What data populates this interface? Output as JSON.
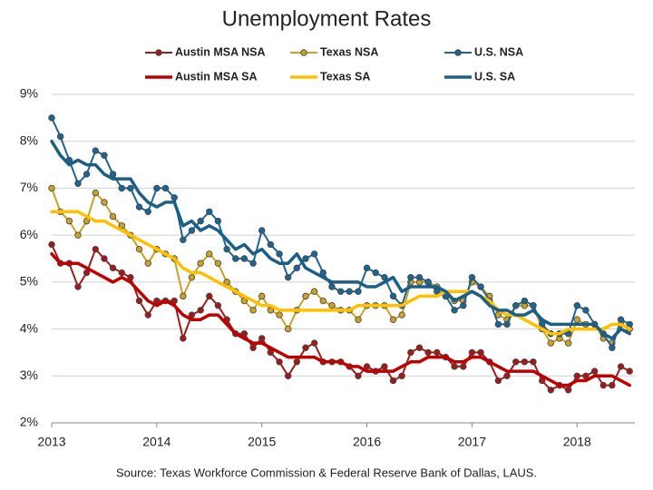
{
  "chart_data": {
    "type": "line",
    "title": "Unemployment Rates",
    "source": "Source:  Texas Workforce Commission & Federal Reserve Bank of Dallas, LAUS.",
    "x": [
      2013,
      2013.083,
      2013.167,
      2013.25,
      2013.333,
      2013.417,
      2013.5,
      2013.583,
      2013.667,
      2013.75,
      2013.833,
      2013.917,
      2014,
      2014.083,
      2014.167,
      2014.25,
      2014.333,
      2014.417,
      2014.5,
      2014.583,
      2014.667,
      2014.75,
      2014.833,
      2014.917,
      2015,
      2015.083,
      2015.167,
      2015.25,
      2015.333,
      2015.417,
      2015.5,
      2015.583,
      2015.667,
      2015.75,
      2015.833,
      2015.917,
      2016,
      2016.083,
      2016.167,
      2016.25,
      2016.333,
      2016.417,
      2016.5,
      2016.583,
      2016.667,
      2016.75,
      2016.833,
      2016.917,
      2017,
      2017.083,
      2017.167,
      2017.25,
      2017.333,
      2017.417,
      2017.5,
      2017.583,
      2017.667,
      2017.75,
      2017.833,
      2017.917,
      2018,
      2018.083,
      2018.167,
      2018.25,
      2018.333,
      2018.417,
      2018.5
    ],
    "xlim": [
      2013,
      2018.55
    ],
    "xticks": [
      2013,
      2014,
      2015,
      2016,
      2017,
      2018
    ],
    "ylim": [
      2,
      9
    ],
    "yticks": [
      {
        "value": 2,
        "label": "2%"
      },
      {
        "value": 3,
        "label": "3%"
      },
      {
        "value": 4,
        "label": "4%"
      },
      {
        "value": 5,
        "label": "5%"
      },
      {
        "value": 6,
        "label": "6%"
      },
      {
        "value": 7,
        "label": "7%"
      },
      {
        "value": 8,
        "label": "8%"
      },
      {
        "value": 9,
        "label": "9%"
      }
    ],
    "grid": true,
    "series": [
      {
        "name": "Austin MSA NSA",
        "color": "#9e1b1b",
        "marker": true,
        "values": [
          5.8,
          5.4,
          5.4,
          4.9,
          5.2,
          5.7,
          5.5,
          5.3,
          5.2,
          5.1,
          4.6,
          4.3,
          4.6,
          4.6,
          4.6,
          3.8,
          4.3,
          4.4,
          4.7,
          4.5,
          4.2,
          3.9,
          3.9,
          3.6,
          3.8,
          3.5,
          3.3,
          3.0,
          3.3,
          3.6,
          3.7,
          3.3,
          3.3,
          3.3,
          3.2,
          3.0,
          3.2,
          3.1,
          3.2,
          2.9,
          3.0,
          3.5,
          3.6,
          3.5,
          3.5,
          3.4,
          3.2,
          3.2,
          3.5,
          3.5,
          3.3,
          2.9,
          3.0,
          3.3,
          3.3,
          3.3,
          2.9,
          2.7,
          2.8,
          2.7,
          3.0,
          3.0,
          3.1,
          2.8,
          2.8,
          3.2,
          3.1
        ]
      },
      {
        "name": "Texas NSA",
        "color": "#c9a227",
        "marker": true,
        "values": [
          7.0,
          6.5,
          6.3,
          6.0,
          6.3,
          6.9,
          6.7,
          6.4,
          6.2,
          6.0,
          5.7,
          5.4,
          5.7,
          5.6,
          5.5,
          4.7,
          5.1,
          5.4,
          5.6,
          5.4,
          5.0,
          4.8,
          4.6,
          4.4,
          4.7,
          4.4,
          4.3,
          4.0,
          4.4,
          4.7,
          4.8,
          4.6,
          4.5,
          4.4,
          4.4,
          4.2,
          4.5,
          4.5,
          4.5,
          4.2,
          4.3,
          5.0,
          5.0,
          5.0,
          4.9,
          4.7,
          4.6,
          4.6,
          5.0,
          4.9,
          4.7,
          4.3,
          4.2,
          4.5,
          4.5,
          4.5,
          4.0,
          3.7,
          3.8,
          3.7,
          4.2,
          4.1,
          4.1,
          3.8,
          3.7,
          4.1,
          4.0
        ]
      },
      {
        "name": "U.S. NSA",
        "color": "#1d6592",
        "marker": true,
        "values": [
          8.5,
          8.1,
          7.6,
          7.1,
          7.3,
          7.8,
          7.7,
          7.3,
          7.0,
          7.0,
          6.6,
          6.5,
          7.0,
          7.0,
          6.8,
          5.9,
          6.1,
          6.3,
          6.5,
          6.3,
          5.7,
          5.5,
          5.5,
          5.4,
          6.1,
          5.8,
          5.6,
          5.1,
          5.3,
          5.5,
          5.6,
          5.2,
          4.9,
          4.8,
          4.8,
          4.8,
          5.3,
          5.2,
          5.1,
          4.7,
          4.5,
          5.1,
          5.1,
          5.0,
          4.8,
          4.7,
          4.4,
          4.5,
          5.1,
          4.9,
          4.6,
          4.1,
          4.1,
          4.5,
          4.6,
          4.5,
          4.1,
          3.9,
          3.9,
          3.9,
          4.5,
          4.4,
          4.1,
          3.9,
          3.6,
          4.2,
          4.1
        ]
      },
      {
        "name": "Austin MSA SA",
        "color": "#c00000",
        "marker": false,
        "values": [
          5.6,
          5.4,
          5.4,
          5.4,
          5.3,
          5.2,
          5.1,
          5.0,
          5.1,
          5.0,
          4.8,
          4.6,
          4.5,
          4.6,
          4.5,
          4.3,
          4.2,
          4.2,
          4.3,
          4.3,
          4.1,
          3.9,
          3.8,
          3.7,
          3.7,
          3.6,
          3.5,
          3.4,
          3.4,
          3.4,
          3.4,
          3.3,
          3.3,
          3.3,
          3.2,
          3.2,
          3.1,
          3.1,
          3.1,
          3.1,
          3.2,
          3.3,
          3.3,
          3.4,
          3.4,
          3.4,
          3.3,
          3.3,
          3.4,
          3.4,
          3.3,
          3.2,
          3.1,
          3.1,
          3.1,
          3.1,
          3.0,
          2.9,
          2.8,
          2.8,
          2.9,
          2.9,
          3.0,
          3.0,
          3.0,
          2.9,
          2.8
        ]
      },
      {
        "name": "Texas SA",
        "color": "#ffc000",
        "marker": false,
        "values": [
          6.5,
          6.5,
          6.5,
          6.5,
          6.4,
          6.3,
          6.3,
          6.2,
          6.1,
          6.0,
          5.9,
          5.8,
          5.7,
          5.6,
          5.5,
          5.3,
          5.2,
          5.2,
          5.1,
          5.0,
          4.9,
          4.8,
          4.7,
          4.6,
          4.5,
          4.5,
          4.4,
          4.4,
          4.4,
          4.4,
          4.4,
          4.4,
          4.4,
          4.4,
          4.4,
          4.5,
          4.5,
          4.5,
          4.5,
          4.5,
          4.5,
          4.6,
          4.7,
          4.7,
          4.7,
          4.8,
          4.8,
          4.8,
          4.8,
          4.7,
          4.6,
          4.4,
          4.3,
          4.3,
          4.2,
          4.1,
          4.0,
          3.9,
          3.9,
          4.0,
          4.0,
          4.0,
          4.0,
          4.0,
          4.1,
          4.1,
          4.0
        ]
      },
      {
        "name": "U.S. SA",
        "color": "#1b5e86",
        "marker": false,
        "values": [
          8.0,
          7.7,
          7.5,
          7.6,
          7.5,
          7.5,
          7.3,
          7.2,
          7.2,
          7.2,
          6.9,
          6.7,
          6.6,
          6.7,
          6.7,
          6.2,
          6.3,
          6.1,
          6.2,
          6.1,
          5.9,
          5.7,
          5.8,
          5.6,
          5.7,
          5.5,
          5.4,
          5.4,
          5.6,
          5.3,
          5.2,
          5.1,
          5.0,
          5.0,
          5.0,
          5.0,
          4.9,
          4.9,
          5.0,
          5.1,
          4.8,
          4.9,
          4.9,
          4.9,
          4.9,
          4.8,
          4.6,
          4.7,
          4.8,
          4.7,
          4.5,
          4.4,
          4.4,
          4.3,
          4.3,
          4.4,
          4.2,
          4.1,
          4.1,
          4.1,
          4.1,
          4.1,
          4.1,
          3.9,
          3.8,
          4.0,
          3.9
        ]
      }
    ]
  }
}
